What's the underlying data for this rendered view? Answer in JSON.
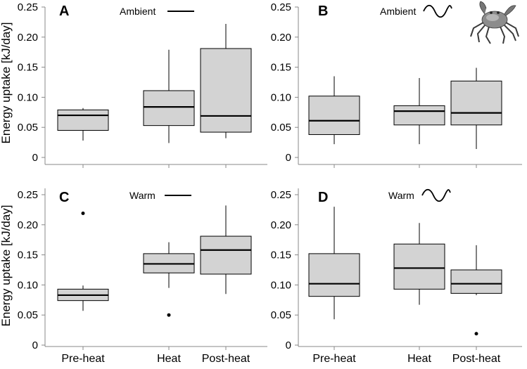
{
  "ylabel": "Energy uptake [kJ/day]",
  "chart_data": [
    {
      "type": "box",
      "panel": "A",
      "legend": "Ambient",
      "legend_symbol": "flat-line",
      "categories": [
        "Pre-heat",
        "Heat",
        "Post-heat"
      ],
      "ylim": [
        0,
        0.25
      ],
      "yticks": [
        "0",
        "0.05",
        "0.10",
        "0.15",
        "0.20",
        "0.25"
      ],
      "boxes": [
        {
          "min": 0.028,
          "q1": 0.045,
          "median": 0.07,
          "q3": 0.079,
          "max": 0.082,
          "outliers": []
        },
        {
          "min": 0.024,
          "q1": 0.053,
          "median": 0.084,
          "q3": 0.111,
          "max": 0.179,
          "outliers": []
        },
        {
          "min": 0.032,
          "q1": 0.042,
          "median": 0.069,
          "q3": 0.181,
          "max": 0.222,
          "outliers": []
        }
      ]
    },
    {
      "type": "box",
      "panel": "B",
      "legend": "Ambient",
      "legend_symbol": "wave",
      "categories": [
        "Pre-heat",
        "Heat",
        "Post-heat"
      ],
      "ylim": [
        0,
        0.25
      ],
      "yticks": [
        "0",
        "0.05",
        "0.10",
        "0.15",
        "0.20",
        "0.25"
      ],
      "boxes": [
        {
          "min": 0.022,
          "q1": 0.038,
          "median": 0.061,
          "q3": 0.102,
          "max": 0.135,
          "outliers": []
        },
        {
          "min": 0.022,
          "q1": 0.054,
          "median": 0.077,
          "q3": 0.086,
          "max": 0.132,
          "outliers": []
        },
        {
          "min": 0.014,
          "q1": 0.054,
          "median": 0.074,
          "q3": 0.127,
          "max": 0.149,
          "outliers": []
        }
      ]
    },
    {
      "type": "box",
      "panel": "C",
      "legend": "Warm",
      "legend_symbol": "flat-line",
      "categories": [
        "Pre-heat",
        "Heat",
        "Post-heat"
      ],
      "ylim": [
        0,
        0.25
      ],
      "yticks": [
        "0",
        "0.05",
        "0.10",
        "0.15",
        "0.20",
        "0.25"
      ],
      "boxes": [
        {
          "min": 0.057,
          "q1": 0.074,
          "median": 0.083,
          "q3": 0.093,
          "max": 0.099,
          "outliers": [
            0.219
          ]
        },
        {
          "min": 0.095,
          "q1": 0.12,
          "median": 0.135,
          "q3": 0.152,
          "max": 0.171,
          "outliers": [
            0.05
          ]
        },
        {
          "min": 0.085,
          "q1": 0.118,
          "median": 0.158,
          "q3": 0.181,
          "max": 0.232,
          "outliers": []
        }
      ]
    },
    {
      "type": "box",
      "panel": "D",
      "legend": "Warm",
      "legend_symbol": "wave",
      "categories": [
        "Pre-heat",
        "Heat",
        "Post-heat"
      ],
      "ylim": [
        0,
        0.25
      ],
      "yticks": [
        "0",
        "0.05",
        "0.10",
        "0.15",
        "0.20",
        "0.25"
      ],
      "boxes": [
        {
          "min": 0.043,
          "q1": 0.081,
          "median": 0.102,
          "q3": 0.152,
          "max": 0.23,
          "outliers": []
        },
        {
          "min": 0.067,
          "q1": 0.093,
          "median": 0.128,
          "q3": 0.168,
          "max": 0.203,
          "outliers": []
        },
        {
          "min": 0.083,
          "q1": 0.086,
          "median": 0.102,
          "q3": 0.125,
          "max": 0.166,
          "outliers": [
            0.019
          ]
        }
      ]
    }
  ],
  "colors": {
    "box_fill": "#d3d3d3",
    "stroke": "#000000",
    "axis": "#888888"
  },
  "icons": {
    "crab": "crab-illustration"
  }
}
